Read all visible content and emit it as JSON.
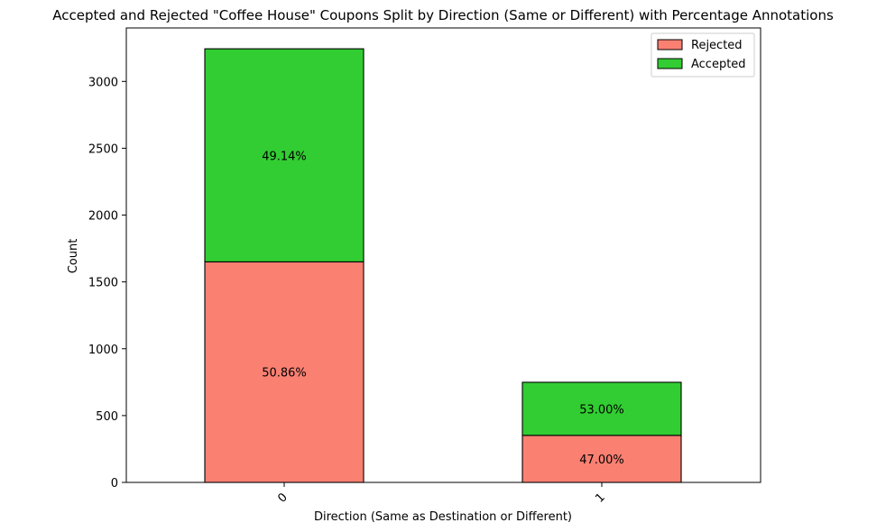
{
  "chart_data": {
    "type": "bar",
    "stacked": true,
    "title": "Accepted and Rejected \"Coffee House\" Coupons Split by Direction (Same or Different) with Percentage Annotations",
    "xlabel": "Direction (Same as Destination or Different)",
    "ylabel": "Count",
    "categories": [
      "0",
      "1"
    ],
    "series": [
      {
        "name": "Rejected",
        "color": "#FA8072",
        "values": [
          1650,
          352
        ],
        "labels": [
          "50.86%",
          "47.00%"
        ]
      },
      {
        "name": "Accepted",
        "color": "#32CD32",
        "values": [
          1594,
          397
        ],
        "labels": [
          "49.14%",
          "53.00%"
        ]
      }
    ],
    "ylim": [
      0,
      3400
    ],
    "yticks": [
      0,
      500,
      1000,
      1500,
      2000,
      2500,
      3000
    ],
    "xtick_rotation": 45,
    "legend": {
      "placement": "top-right",
      "entries": [
        "Rejected",
        "Accepted"
      ]
    },
    "grid": false
  }
}
